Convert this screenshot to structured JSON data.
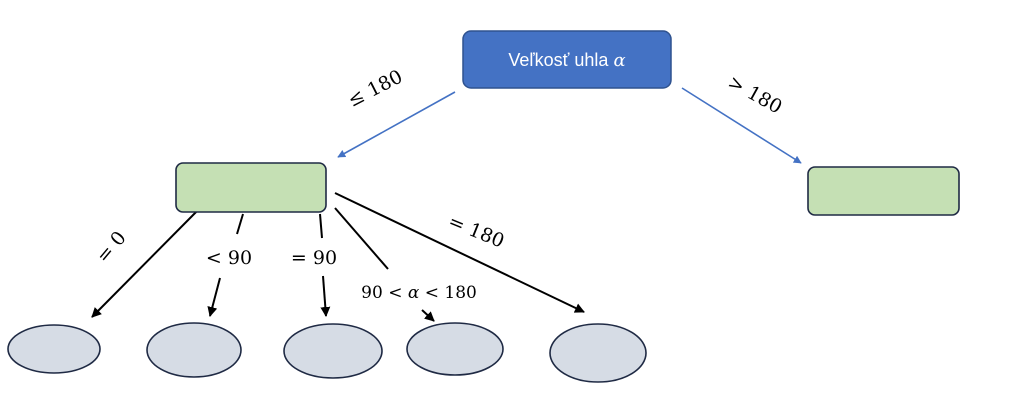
{
  "root": {
    "label": "Veľkosť uhla",
    "symbol": "α",
    "fill": "#4472C4",
    "stroke": "#2F528F"
  },
  "branches": {
    "left": "≤ 180",
    "right": "> 180"
  },
  "sub_branches": {
    "eq0": "= 0",
    "lt90": "< 90",
    "eq90": "= 90",
    "between_prefix": "90 <",
    "between_symbol": "α",
    "between_suffix": "< 180",
    "eq180": "= 180"
  },
  "colors": {
    "box_fill": "#C5E0B4",
    "box_stroke": "#1F2A44",
    "ellipse_fill": "#D6DCE5",
    "ellipse_stroke": "#1F2A44",
    "blue_edge": "#4472C4",
    "black_edge": "#000000"
  }
}
